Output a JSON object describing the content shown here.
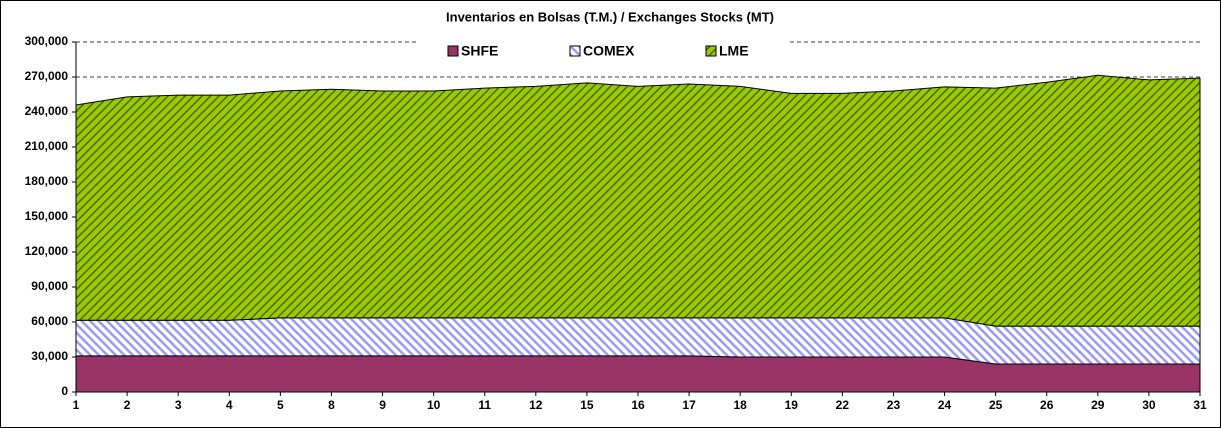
{
  "chart_data": {
    "type": "stacked_area",
    "title": "Inventarios en Bolsas (T.M.) / Exchanges Stocks (MT)",
    "categories": [
      "1",
      "2",
      "3",
      "4",
      "5",
      "8",
      "9",
      "10",
      "11",
      "12",
      "15",
      "16",
      "17",
      "18",
      "19",
      "22",
      "23",
      "24",
      "25",
      "26",
      "29",
      "30",
      "31"
    ],
    "series": [
      {
        "name": "SHFE",
        "color": "#993366",
        "values": [
          31000,
          31000,
          31000,
          31000,
          31000,
          31000,
          31000,
          31000,
          31000,
          31000,
          31000,
          31000,
          31000,
          30000,
          30000,
          30000,
          30000,
          30000,
          24000,
          24000,
          24000,
          24000,
          24000
        ]
      },
      {
        "name": "COMEX",
        "color": "#9999ff",
        "values": [
          30500,
          30500,
          30500,
          30500,
          32500,
          32500,
          32500,
          32500,
          32500,
          32500,
          32500,
          32500,
          32500,
          33500,
          33500,
          33500,
          33500,
          33500,
          32500,
          32500,
          32500,
          32500,
          32500
        ]
      },
      {
        "name": "LME",
        "color": "#99cc00",
        "values": [
          184500,
          191500,
          193000,
          193000,
          194500,
          196000,
          194500,
          194500,
          197000,
          198500,
          201500,
          198500,
          200500,
          198500,
          192500,
          192500,
          194500,
          198000,
          204000,
          209000,
          215000,
          211000,
          212500
        ]
      }
    ],
    "ylim": [
      0,
      300000
    ],
    "yticks": [
      0,
      {
        "value": 30000,
        "label": "30,000"
      },
      {
        "value": 60000,
        "label": "60,000"
      },
      {
        "value": 90000,
        "label": "90,000"
      },
      {
        "value": 120000,
        "label": "120,000"
      },
      {
        "value": 150000,
        "label": "150,000"
      },
      {
        "value": 180000,
        "label": "180,000"
      },
      {
        "value": 210000,
        "label": "210,000"
      },
      {
        "value": 240000,
        "label": "240,000"
      },
      {
        "value": 270000,
        "label": "270,000"
      },
      {
        "value": 300000,
        "label": "300,000"
      }
    ],
    "grid": true,
    "legend": "top"
  }
}
